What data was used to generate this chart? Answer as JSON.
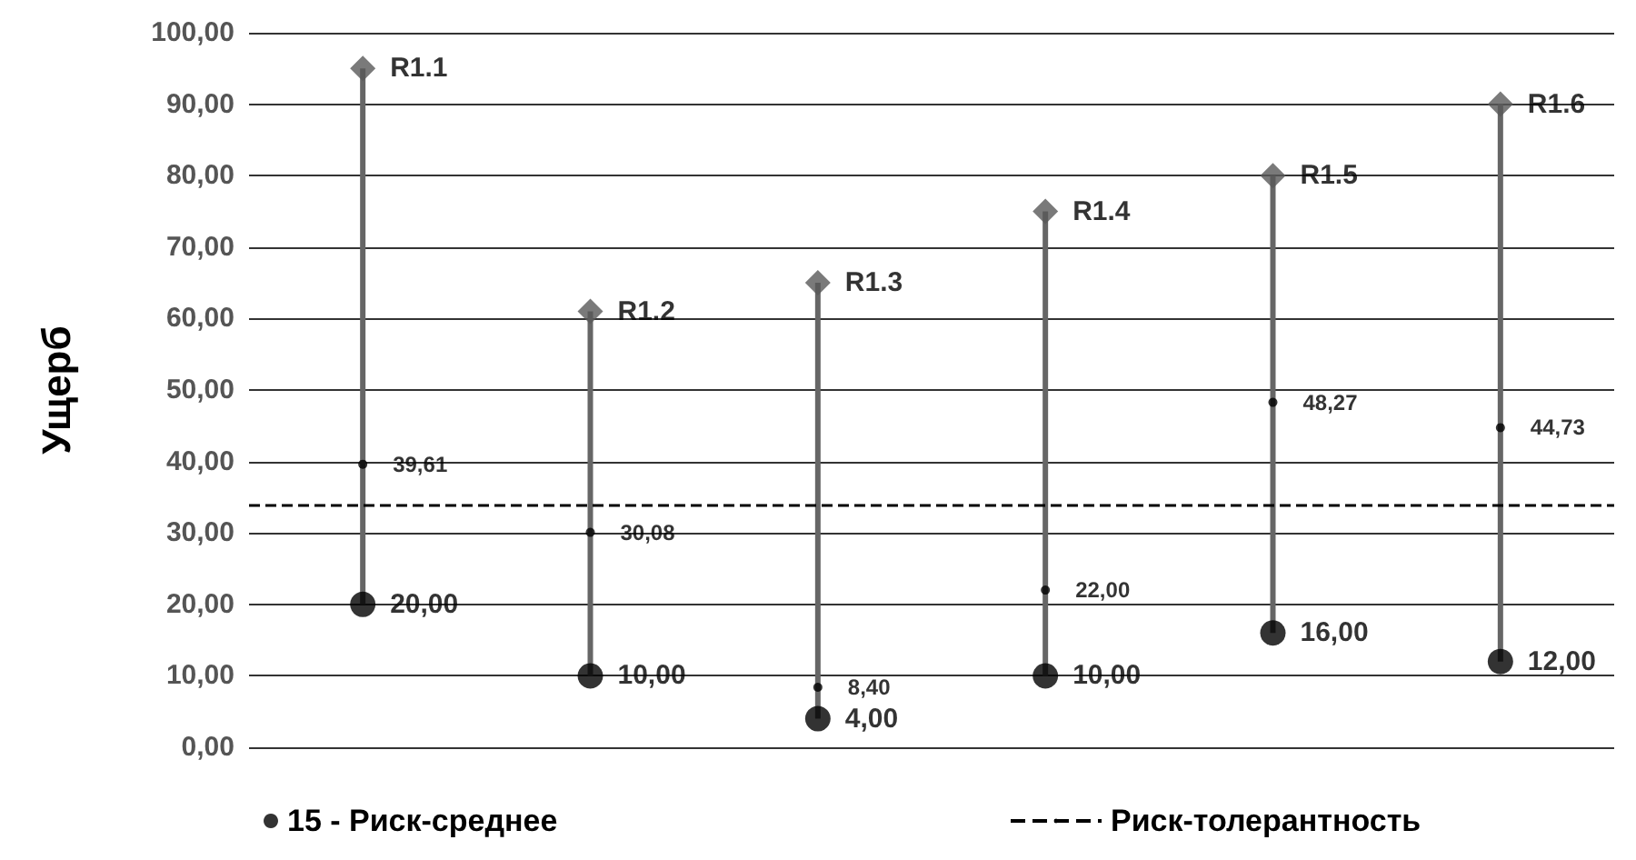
{
  "chart_data": {
    "type": "bar",
    "ylabel": "Ущерб",
    "categories": [
      null,
      null,
      null,
      null,
      null,
      null
    ],
    "ylim": [
      0,
      100
    ],
    "yticks": [
      {
        "value": 0,
        "label": "0,00"
      },
      {
        "value": 10,
        "label": "10,00"
      },
      {
        "value": 20,
        "label": "20,00"
      },
      {
        "value": 30,
        "label": "30,00"
      },
      {
        "value": 40,
        "label": "40,00"
      },
      {
        "value": 50,
        "label": "50,00"
      },
      {
        "value": 60,
        "label": "60,00"
      },
      {
        "value": 70,
        "label": "70,00"
      },
      {
        "value": 80,
        "label": "80,00"
      },
      {
        "value": 90,
        "label": "90,00"
      },
      {
        "value": 100,
        "label": "100,00"
      }
    ],
    "grid": "y",
    "legend": "bottom",
    "series": [
      {
        "color": "#666666",
        "base": [
          20,
          10,
          4,
          10,
          16,
          12
        ],
        "values": [
          75,
          51,
          61,
          65,
          64,
          78
        ]
      },
      {
        "type": "scatter",
        "marker": "diamond",
        "color": "#595959",
        "values": [
          95,
          61,
          65,
          75,
          80,
          90
        ],
        "value_labels": [
          "R1.1",
          "R1.2",
          "R1.3",
          "R1.4",
          "R1.5",
          "R1.6"
        ]
      },
      {
        "type": "scatter",
        "marker": "circle",
        "color": "#000000",
        "values": [
          20,
          10,
          4,
          10,
          16,
          12
        ],
        "value_labels": [
          "20,00",
          "10,00",
          "4,00",
          "10,00",
          "16,00",
          "12,00"
        ]
      },
      {
        "name": "15 - Риск-среднее",
        "type": "scatter",
        "marker": "circle",
        "color": "#000000",
        "values": [
          39.61,
          30.08,
          8.4,
          22,
          48.27,
          44.73
        ],
        "value_labels": [
          "39,61",
          "30,08",
          "8,40",
          "22,00",
          "48,27",
          "44,73"
        ]
      }
    ],
    "ref_lines": [
      {
        "axis": "y",
        "value": 34,
        "label": "Риск-толерантность",
        "line_style": "dashed",
        "color": "#000000"
      }
    ]
  }
}
